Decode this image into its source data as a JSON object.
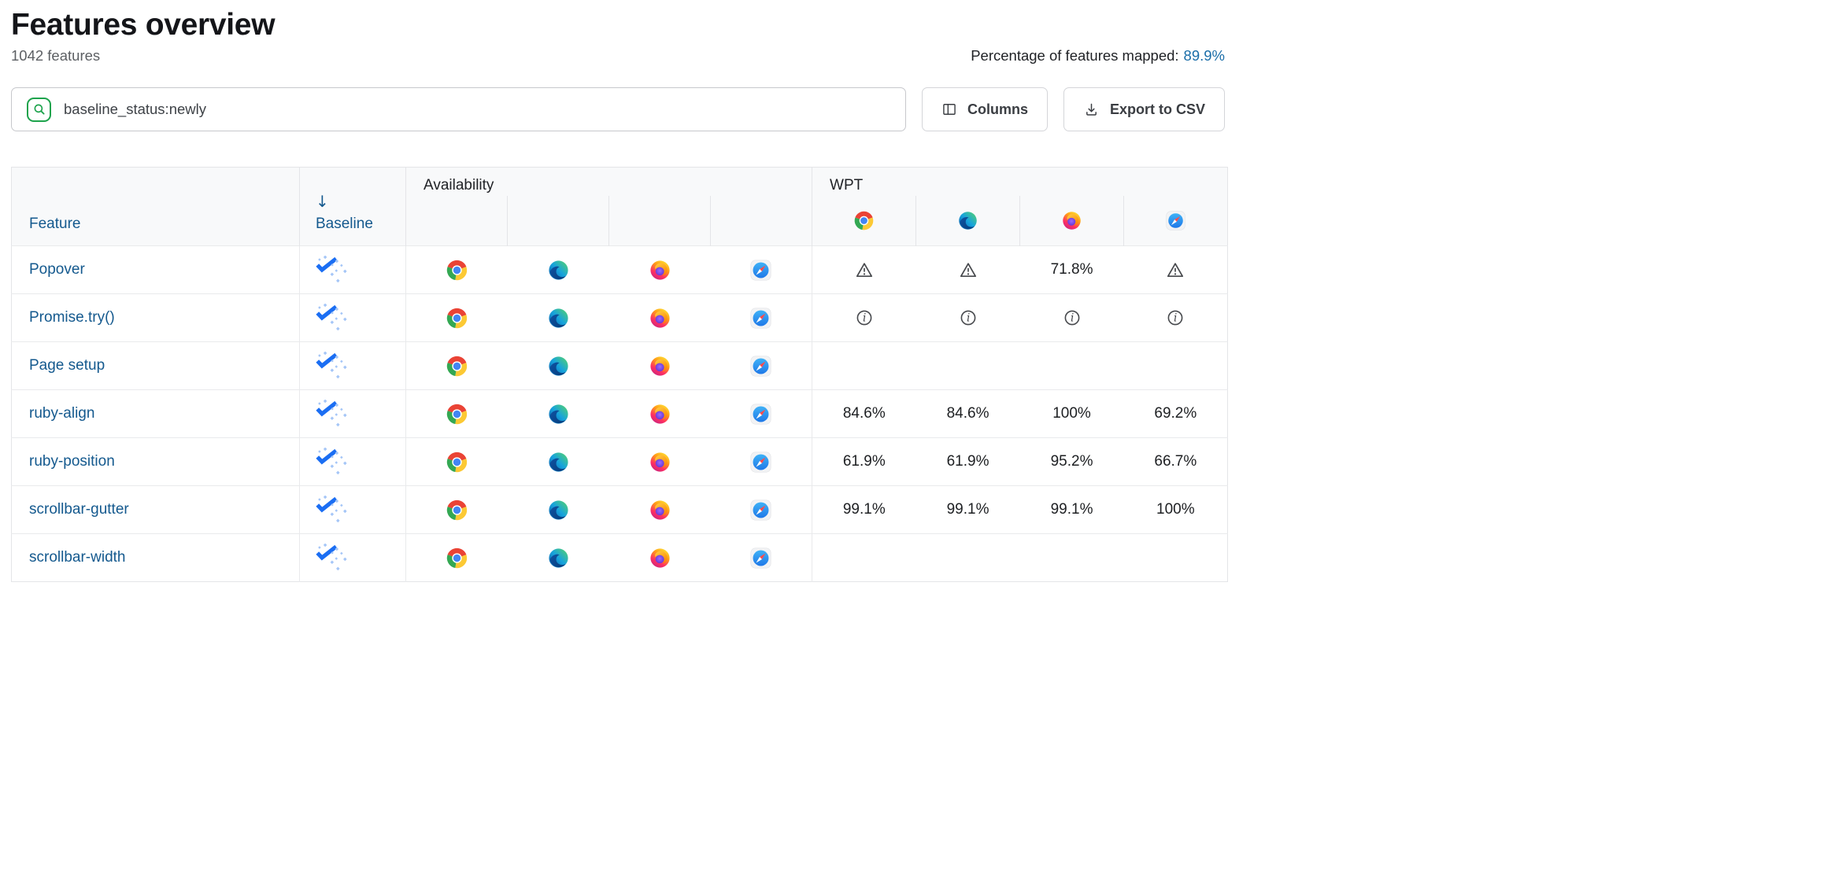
{
  "page": {
    "title": "Features overview",
    "feature_count": "1042 features",
    "mapped_label": "Percentage of features mapped:",
    "mapped_value": "89.9%"
  },
  "toolbar": {
    "search_value": "baseline_status:newly",
    "columns_label": "Columns",
    "export_label": "Export to CSV"
  },
  "table": {
    "headers": {
      "feature": "Feature",
      "baseline": "Baseline",
      "sort_arrow": "↓",
      "availability": "Availability",
      "wpt": "WPT"
    },
    "browsers": [
      "chrome",
      "edge",
      "firefox",
      "safari"
    ],
    "rows": [
      {
        "feature": "Popover",
        "baseline": "newly",
        "availability": [
          "chrome",
          "edge",
          "firefox",
          "safari"
        ],
        "wpt": [
          {
            "type": "warning"
          },
          {
            "type": "warning"
          },
          {
            "type": "score",
            "value": "71.8%"
          },
          {
            "type": "warning"
          }
        ]
      },
      {
        "feature": "Promise.try()",
        "baseline": "newly",
        "availability": [
          "chrome",
          "edge",
          "firefox",
          "safari"
        ],
        "wpt": [
          {
            "type": "info"
          },
          {
            "type": "info"
          },
          {
            "type": "info"
          },
          {
            "type": "info"
          }
        ]
      },
      {
        "feature": "Page setup",
        "baseline": "newly",
        "availability": [
          "chrome",
          "edge",
          "firefox",
          "safari"
        ],
        "wpt": [
          {
            "type": "none"
          },
          {
            "type": "none"
          },
          {
            "type": "none"
          },
          {
            "type": "none"
          }
        ]
      },
      {
        "feature": "ruby-align",
        "baseline": "newly",
        "availability": [
          "chrome",
          "edge",
          "firefox",
          "safari"
        ],
        "wpt": [
          {
            "type": "score",
            "value": "84.6%"
          },
          {
            "type": "score",
            "value": "84.6%"
          },
          {
            "type": "score",
            "value": "100%"
          },
          {
            "type": "score",
            "value": "69.2%"
          }
        ]
      },
      {
        "feature": "ruby-position",
        "baseline": "newly",
        "availability": [
          "chrome",
          "edge",
          "firefox",
          "safari"
        ],
        "wpt": [
          {
            "type": "score",
            "value": "61.9%"
          },
          {
            "type": "score",
            "value": "61.9%"
          },
          {
            "type": "score",
            "value": "95.2%"
          },
          {
            "type": "score",
            "value": "66.7%"
          }
        ]
      },
      {
        "feature": "scrollbar-gutter",
        "baseline": "newly",
        "availability": [
          "chrome",
          "edge",
          "firefox",
          "safari"
        ],
        "wpt": [
          {
            "type": "score",
            "value": "99.1%"
          },
          {
            "type": "score",
            "value": "99.1%"
          },
          {
            "type": "score",
            "value": "99.1%"
          },
          {
            "type": "score",
            "value": "100%"
          }
        ]
      },
      {
        "feature": "scrollbar-width",
        "baseline": "newly",
        "availability": [
          "chrome",
          "edge",
          "firefox",
          "safari"
        ],
        "wpt": [
          {
            "type": "none"
          },
          {
            "type": "none"
          },
          {
            "type": "none"
          },
          {
            "type": "none"
          }
        ]
      }
    ]
  },
  "colors": {
    "link_blue": "#14598e",
    "baseline_check": "#1b6ef3",
    "baseline_dot": "#a5c6f7",
    "search_green": "#1da34c",
    "header_bg": "#f8f9fa"
  }
}
